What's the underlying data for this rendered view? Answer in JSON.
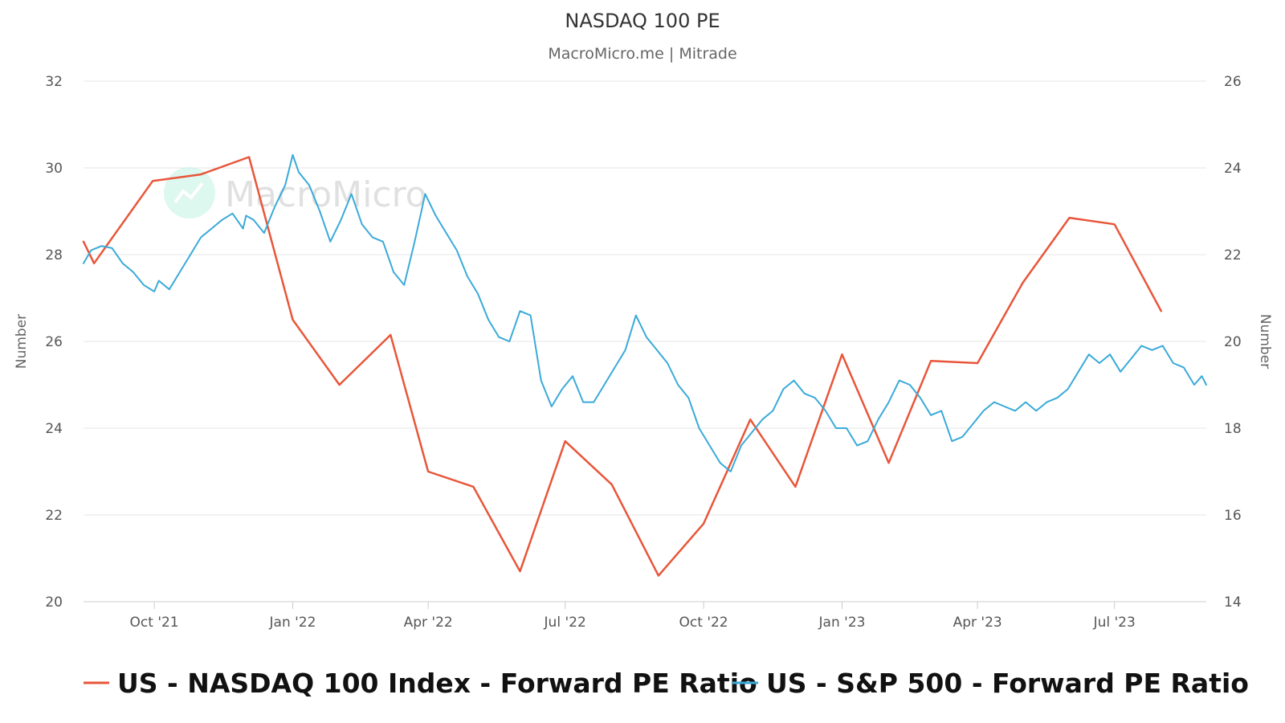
{
  "header": {
    "title": "NASDAQ 100 PE",
    "subtitle": "MacroMicro.me | Mitrade"
  },
  "watermark": {
    "text": "MacroMicro",
    "icon": "macromicro-logo-icon"
  },
  "colors": {
    "nasdaq": "#e8563a",
    "sp500": "#3aaad9",
    "grid": "#e6e6e6",
    "axis": "#cccccc"
  },
  "chart_data": {
    "type": "line",
    "title": "NASDAQ 100 PE",
    "subtitle": "MacroMicro.me | Mitrade",
    "grid": true,
    "legend_position": "bottom",
    "x_range": [
      "2021-08-15",
      "2023-08-31"
    ],
    "x_ticks": [
      {
        "date": "2021-10-01",
        "label": "Oct '21"
      },
      {
        "date": "2022-01-01",
        "label": "Jan '22"
      },
      {
        "date": "2022-04-01",
        "label": "Apr '22"
      },
      {
        "date": "2022-07-01",
        "label": "Jul '22"
      },
      {
        "date": "2022-10-01",
        "label": "Oct '22"
      },
      {
        "date": "2023-01-01",
        "label": "Jan '23"
      },
      {
        "date": "2023-04-01",
        "label": "Apr '23"
      },
      {
        "date": "2023-07-01",
        "label": "Jul '23"
      }
    ],
    "y_left": {
      "label": "Number",
      "range": [
        20,
        32
      ],
      "ticks": [
        20,
        22,
        24,
        26,
        28,
        30,
        32
      ]
    },
    "y_right": {
      "label": "Number",
      "range": [
        14,
        26
      ],
      "ticks": [
        14,
        16,
        18,
        20,
        22,
        24,
        26
      ]
    },
    "series": [
      {
        "name": "US - NASDAQ 100 Index - Forward PE Ratio",
        "axis": "left",
        "color": "#e8563a",
        "points": [
          [
            "2021-08-15",
            28.3
          ],
          [
            "2021-08-22",
            27.8
          ],
          [
            "2021-09-30",
            29.7
          ],
          [
            "2021-11-01",
            29.85
          ],
          [
            "2021-12-03",
            30.25
          ],
          [
            "2022-01-01",
            26.5
          ],
          [
            "2022-02-01",
            25.0
          ],
          [
            "2022-03-07",
            26.15
          ],
          [
            "2022-04-01",
            23.0
          ],
          [
            "2022-05-01",
            22.65
          ],
          [
            "2022-06-01",
            20.7
          ],
          [
            "2022-07-01",
            23.7
          ],
          [
            "2022-08-01",
            22.7
          ],
          [
            "2022-09-01",
            20.6
          ],
          [
            "2022-10-01",
            21.8
          ],
          [
            "2022-11-01",
            24.2
          ],
          [
            "2022-12-01",
            22.65
          ],
          [
            "2023-01-01",
            25.7
          ],
          [
            "2023-02-01",
            23.2
          ],
          [
            "2023-03-01",
            25.55
          ],
          [
            "2023-04-01",
            25.5
          ],
          [
            "2023-05-01",
            27.35
          ],
          [
            "2023-06-01",
            28.85
          ],
          [
            "2023-07-01",
            28.7
          ],
          [
            "2023-08-01",
            26.7
          ]
        ]
      },
      {
        "name": "US - S&P 500 - Forward PE Ratio",
        "axis": "right",
        "color": "#3aaad9",
        "points": [
          [
            "2021-08-15",
            21.8
          ],
          [
            "2021-08-20",
            22.1
          ],
          [
            "2021-08-27",
            22.2
          ],
          [
            "2021-09-03",
            22.15
          ],
          [
            "2021-09-10",
            21.8
          ],
          [
            "2021-09-17",
            21.6
          ],
          [
            "2021-09-24",
            21.3
          ],
          [
            "2021-10-01",
            21.15
          ],
          [
            "2021-10-04",
            21.4
          ],
          [
            "2021-10-11",
            21.2
          ],
          [
            "2021-10-18",
            21.6
          ],
          [
            "2021-10-25",
            22.0
          ],
          [
            "2021-11-01",
            22.4
          ],
          [
            "2021-11-08",
            22.6
          ],
          [
            "2021-11-15",
            22.8
          ],
          [
            "2021-11-22",
            22.95
          ],
          [
            "2021-11-29",
            22.6
          ],
          [
            "2021-12-01",
            22.9
          ],
          [
            "2021-12-06",
            22.8
          ],
          [
            "2021-12-13",
            22.5
          ],
          [
            "2021-12-20",
            23.1
          ],
          [
            "2021-12-27",
            23.6
          ],
          [
            "2022-01-01",
            24.3
          ],
          [
            "2022-01-05",
            23.9
          ],
          [
            "2022-01-12",
            23.6
          ],
          [
            "2022-01-19",
            23.0
          ],
          [
            "2022-01-26",
            22.3
          ],
          [
            "2022-02-02",
            22.8
          ],
          [
            "2022-02-09",
            23.4
          ],
          [
            "2022-02-16",
            22.7
          ],
          [
            "2022-02-23",
            22.4
          ],
          [
            "2022-03-02",
            22.3
          ],
          [
            "2022-03-09",
            21.6
          ],
          [
            "2022-03-16",
            21.3
          ],
          [
            "2022-03-23",
            22.3
          ],
          [
            "2022-03-30",
            23.4
          ],
          [
            "2022-04-06",
            22.9
          ],
          [
            "2022-04-13",
            22.5
          ],
          [
            "2022-04-20",
            22.1
          ],
          [
            "2022-04-27",
            21.5
          ],
          [
            "2022-05-04",
            21.1
          ],
          [
            "2022-05-11",
            20.5
          ],
          [
            "2022-05-18",
            20.1
          ],
          [
            "2022-05-25",
            20.0
          ],
          [
            "2022-06-01",
            20.7
          ],
          [
            "2022-06-08",
            20.6
          ],
          [
            "2022-06-15",
            19.1
          ],
          [
            "2022-06-22",
            18.5
          ],
          [
            "2022-06-29",
            18.9
          ],
          [
            "2022-07-06",
            19.2
          ],
          [
            "2022-07-13",
            18.6
          ],
          [
            "2022-07-20",
            18.6
          ],
          [
            "2022-07-27",
            19.0
          ],
          [
            "2022-08-03",
            19.4
          ],
          [
            "2022-08-10",
            19.8
          ],
          [
            "2022-08-17",
            20.6
          ],
          [
            "2022-08-24",
            20.1
          ],
          [
            "2022-08-31",
            19.8
          ],
          [
            "2022-09-07",
            19.5
          ],
          [
            "2022-09-14",
            19.0
          ],
          [
            "2022-09-21",
            18.7
          ],
          [
            "2022-09-28",
            18.0
          ],
          [
            "2022-10-05",
            17.6
          ],
          [
            "2022-10-12",
            17.2
          ],
          [
            "2022-10-19",
            17.0
          ],
          [
            "2022-10-26",
            17.6
          ],
          [
            "2022-11-02",
            17.9
          ],
          [
            "2022-11-09",
            18.2
          ],
          [
            "2022-11-16",
            18.4
          ],
          [
            "2022-11-23",
            18.9
          ],
          [
            "2022-11-30",
            19.1
          ],
          [
            "2022-12-07",
            18.8
          ],
          [
            "2022-12-14",
            18.7
          ],
          [
            "2022-12-21",
            18.4
          ],
          [
            "2022-12-28",
            18.0
          ],
          [
            "2023-01-04",
            18.0
          ],
          [
            "2023-01-11",
            17.6
          ],
          [
            "2023-01-18",
            17.7
          ],
          [
            "2023-01-25",
            18.2
          ],
          [
            "2023-02-01",
            18.6
          ],
          [
            "2023-02-08",
            19.1
          ],
          [
            "2023-02-15",
            19.0
          ],
          [
            "2023-02-22",
            18.7
          ],
          [
            "2023-03-01",
            18.3
          ],
          [
            "2023-03-08",
            18.4
          ],
          [
            "2023-03-15",
            17.7
          ],
          [
            "2023-03-22",
            17.8
          ],
          [
            "2023-03-29",
            18.1
          ],
          [
            "2023-04-05",
            18.4
          ],
          [
            "2023-04-12",
            18.6
          ],
          [
            "2023-04-19",
            18.5
          ],
          [
            "2023-04-26",
            18.4
          ],
          [
            "2023-05-03",
            18.6
          ],
          [
            "2023-05-10",
            18.4
          ],
          [
            "2023-05-17",
            18.6
          ],
          [
            "2023-05-24",
            18.7
          ],
          [
            "2023-05-31",
            18.9
          ],
          [
            "2023-06-07",
            19.3
          ],
          [
            "2023-06-14",
            19.7
          ],
          [
            "2023-06-21",
            19.5
          ],
          [
            "2023-06-28",
            19.7
          ],
          [
            "2023-07-05",
            19.3
          ],
          [
            "2023-07-12",
            19.6
          ],
          [
            "2023-07-19",
            19.9
          ],
          [
            "2023-07-26",
            19.8
          ],
          [
            "2023-08-02",
            19.9
          ],
          [
            "2023-08-09",
            19.5
          ],
          [
            "2023-08-16",
            19.4
          ],
          [
            "2023-08-23",
            19.0
          ],
          [
            "2023-08-28",
            19.2
          ],
          [
            "2023-08-31",
            19.0
          ]
        ]
      }
    ]
  }
}
